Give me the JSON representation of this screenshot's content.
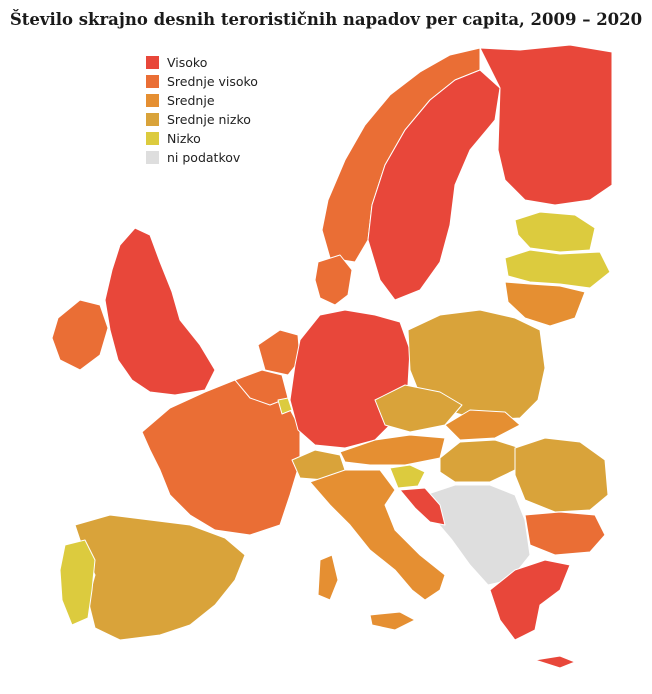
{
  "title": "Število skrajno desnih terorističnih napadov per capita, 2009 – 2020",
  "legend": [
    {
      "label": "Visoko",
      "color": "#e8473a"
    },
    {
      "label": "Srednje visoko",
      "color": "#ea6e35"
    },
    {
      "label": "Srednje",
      "color": "#e58f32"
    },
    {
      "label": "Srednje nizko",
      "color": "#d9a33a"
    },
    {
      "label": "Nizko",
      "color": "#dccb3e"
    },
    {
      "label": "ni podatkov",
      "color": "#dedede"
    }
  ]
}
